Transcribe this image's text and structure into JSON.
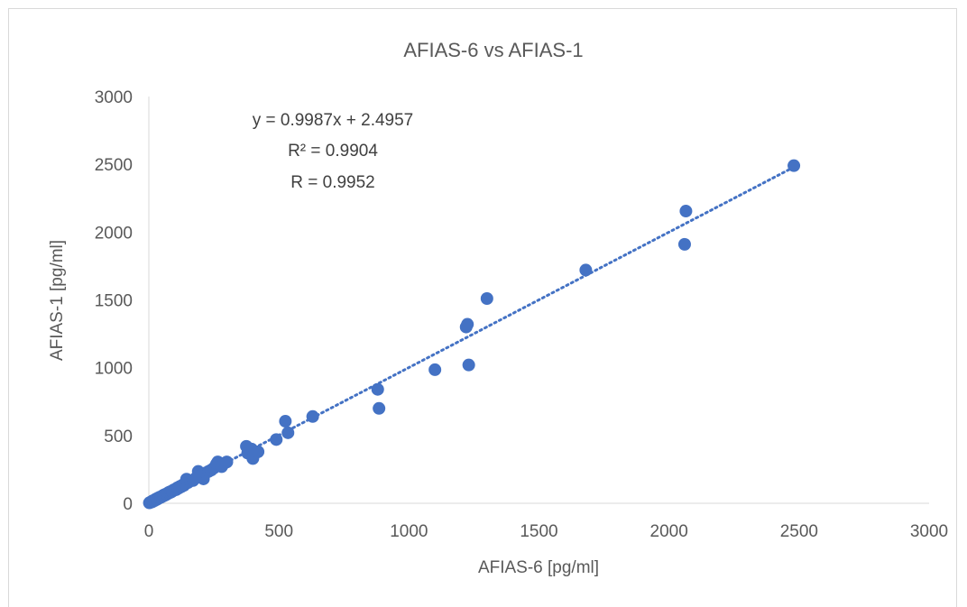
{
  "chart_data": {
    "type": "scatter",
    "title": "AFIAS-6 vs AFIAS-1",
    "xlabel": "AFIAS-6 [pg/ml]",
    "ylabel": "AFIAS-1 [pg/ml]",
    "xlim": [
      0,
      3000
    ],
    "ylim": [
      0,
      3000
    ],
    "xticks": [
      "0",
      "500",
      "1000",
      "1500",
      "2000",
      "2500",
      "3000"
    ],
    "yticks": [
      "0",
      "500",
      "1000",
      "1500",
      "2000",
      "2500",
      "3000"
    ],
    "grid": false,
    "legend": "none",
    "marker_color": "#4472c4",
    "annotations": [
      "y = 0.9987x + 2.4957",
      "R² = 0.9904",
      "R = 0.9952"
    ],
    "trendline": {
      "slope": 0.9987,
      "intercept": 2.4957,
      "style": "dotted",
      "color": "#4472c4"
    },
    "series": [
      {
        "points": [
          [
            2,
            3
          ],
          [
            5,
            6
          ],
          [
            8,
            9
          ],
          [
            10,
            12
          ],
          [
            12,
            10
          ],
          [
            15,
            18
          ],
          [
            18,
            16
          ],
          [
            20,
            22
          ],
          [
            22,
            20
          ],
          [
            25,
            28
          ],
          [
            28,
            26
          ],
          [
            30,
            33
          ],
          [
            32,
            30
          ],
          [
            35,
            38
          ],
          [
            38,
            36
          ],
          [
            40,
            42
          ],
          [
            42,
            45
          ],
          [
            45,
            43
          ],
          [
            48,
            50
          ],
          [
            50,
            48
          ],
          [
            55,
            58
          ],
          [
            58,
            55
          ],
          [
            60,
            63
          ],
          [
            65,
            62
          ],
          [
            68,
            70
          ],
          [
            70,
            68
          ],
          [
            75,
            78
          ],
          [
            78,
            76
          ],
          [
            80,
            83
          ],
          [
            85,
            82
          ],
          [
            88,
            90
          ],
          [
            90,
            88
          ],
          [
            95,
            98
          ],
          [
            100,
            102
          ],
          [
            105,
            100
          ],
          [
            110,
            115
          ],
          [
            115,
            112
          ],
          [
            120,
            125
          ],
          [
            125,
            122
          ],
          [
            130,
            135
          ],
          [
            135,
            132
          ],
          [
            140,
            145
          ],
          [
            145,
            178
          ],
          [
            150,
            152
          ],
          [
            160,
            165
          ],
          [
            170,
            168
          ],
          [
            180,
            185
          ],
          [
            190,
            235
          ],
          [
            195,
            200
          ],
          [
            205,
            210
          ],
          [
            210,
            180
          ],
          [
            220,
            225
          ],
          [
            230,
            235
          ],
          [
            240,
            245
          ],
          [
            250,
            260
          ],
          [
            260,
            290
          ],
          [
            265,
            305
          ],
          [
            270,
            280
          ],
          [
            280,
            270
          ],
          [
            290,
            295
          ],
          [
            300,
            305
          ],
          [
            375,
            420
          ],
          [
            380,
            370
          ],
          [
            395,
            400
          ],
          [
            400,
            330
          ],
          [
            405,
            360
          ],
          [
            420,
            380
          ],
          [
            490,
            470
          ],
          [
            525,
            605
          ],
          [
            535,
            520
          ],
          [
            630,
            640
          ],
          [
            880,
            840
          ],
          [
            885,
            700
          ],
          [
            1100,
            985
          ],
          [
            1220,
            1300
          ],
          [
            1225,
            1320
          ],
          [
            1230,
            1020
          ],
          [
            1300,
            1510
          ],
          [
            1680,
            1720
          ],
          [
            2060,
            1910
          ],
          [
            2065,
            2155
          ],
          [
            2480,
            2490
          ]
        ]
      }
    ]
  }
}
